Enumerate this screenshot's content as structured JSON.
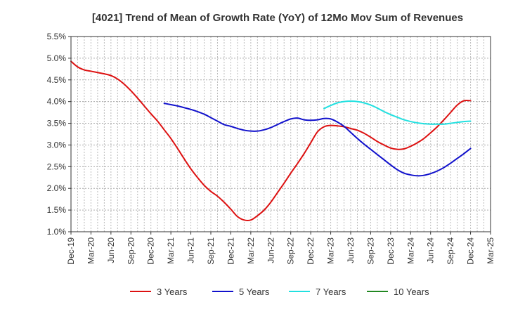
{
  "chart_data": {
    "type": "line",
    "title": "[4021]  Trend of Mean of Growth Rate (YoY) of 12Mo Mov Sum of Revenues",
    "xlabel": "",
    "ylabel": "",
    "ylim": [
      1.0,
      5.5
    ],
    "y_ticks": [
      "1.0%",
      "1.5%",
      "2.0%",
      "2.5%",
      "3.0%",
      "3.5%",
      "4.0%",
      "4.5%",
      "5.0%",
      "5.5%"
    ],
    "y_tick_values": [
      1.0,
      1.5,
      2.0,
      2.5,
      3.0,
      3.5,
      4.0,
      4.5,
      5.0,
      5.5
    ],
    "x_ticks": [
      "Dec-19",
      "Mar-20",
      "Jun-20",
      "Sep-20",
      "Dec-20",
      "Mar-21",
      "Jun-21",
      "Sep-21",
      "Dec-21",
      "Mar-22",
      "Jun-22",
      "Sep-22",
      "Dec-22",
      "Mar-23",
      "Jun-23",
      "Sep-23",
      "Dec-23",
      "Mar-24",
      "Jun-24",
      "Sep-24",
      "Dec-24",
      "Mar-25"
    ],
    "x_range_months": [
      0,
      63
    ],
    "grid": true,
    "legend_position": "bottom",
    "series": [
      {
        "name": "3 Years",
        "color": "#dd1111",
        "x": [
          0,
          1,
          2,
          3,
          4,
          5,
          6,
          7,
          8,
          9,
          10,
          11,
          12,
          13,
          14,
          15,
          16,
          17,
          18,
          19,
          20,
          21,
          22,
          23,
          24,
          25,
          26,
          27,
          28,
          29,
          30,
          31,
          32,
          33,
          34,
          35,
          36,
          37,
          38,
          39,
          40,
          41,
          42,
          43,
          44,
          45,
          46,
          47,
          48,
          49,
          50,
          51,
          52,
          53,
          54,
          55,
          56,
          57,
          58,
          59,
          60
        ],
        "values": [
          4.93,
          4.8,
          4.73,
          4.7,
          4.67,
          4.64,
          4.6,
          4.52,
          4.4,
          4.25,
          4.08,
          3.9,
          3.72,
          3.55,
          3.35,
          3.15,
          2.92,
          2.68,
          2.45,
          2.25,
          2.07,
          1.93,
          1.82,
          1.68,
          1.52,
          1.35,
          1.27,
          1.27,
          1.37,
          1.5,
          1.68,
          1.9,
          2.12,
          2.35,
          2.57,
          2.8,
          3.05,
          3.3,
          3.42,
          3.45,
          3.44,
          3.42,
          3.38,
          3.34,
          3.27,
          3.18,
          3.08,
          3.0,
          2.93,
          2.9,
          2.91,
          2.97,
          3.05,
          3.15,
          3.28,
          3.42,
          3.58,
          3.75,
          3.92,
          4.02,
          4.02
        ]
      },
      {
        "name": "5 Years",
        "color": "#1111cc",
        "x": [
          14,
          15,
          16,
          17,
          18,
          19,
          20,
          21,
          22,
          23,
          24,
          25,
          26,
          27,
          28,
          29,
          30,
          31,
          32,
          33,
          34,
          35,
          36,
          37,
          38,
          39,
          40,
          41,
          42,
          43,
          44,
          45,
          46,
          47,
          48,
          49,
          50,
          51,
          52,
          53,
          54,
          55,
          56,
          57,
          58,
          59,
          60
        ],
        "values": [
          3.96,
          3.93,
          3.9,
          3.86,
          3.82,
          3.77,
          3.71,
          3.63,
          3.55,
          3.47,
          3.43,
          3.38,
          3.34,
          3.32,
          3.32,
          3.35,
          3.4,
          3.47,
          3.54,
          3.6,
          3.62,
          3.58,
          3.57,
          3.58,
          3.61,
          3.6,
          3.53,
          3.43,
          3.29,
          3.15,
          3.02,
          2.9,
          2.78,
          2.66,
          2.54,
          2.43,
          2.35,
          2.31,
          2.29,
          2.3,
          2.34,
          2.4,
          2.48,
          2.58,
          2.69,
          2.8,
          2.92
        ]
      },
      {
        "name": "7 Years",
        "color": "#22e0e0",
        "x": [
          38,
          39,
          40,
          41,
          42,
          43,
          44,
          45,
          46,
          47,
          48,
          49,
          50,
          51,
          52,
          53,
          54,
          55,
          56,
          57,
          58,
          59,
          60
        ],
        "values": [
          3.84,
          3.91,
          3.97,
          4.0,
          4.01,
          4.0,
          3.97,
          3.92,
          3.85,
          3.77,
          3.7,
          3.64,
          3.58,
          3.54,
          3.51,
          3.49,
          3.48,
          3.48,
          3.48,
          3.5,
          3.52,
          3.54,
          3.55
        ]
      },
      {
        "name": "10 Years",
        "color": "#228822",
        "x": [],
        "values": []
      }
    ]
  }
}
